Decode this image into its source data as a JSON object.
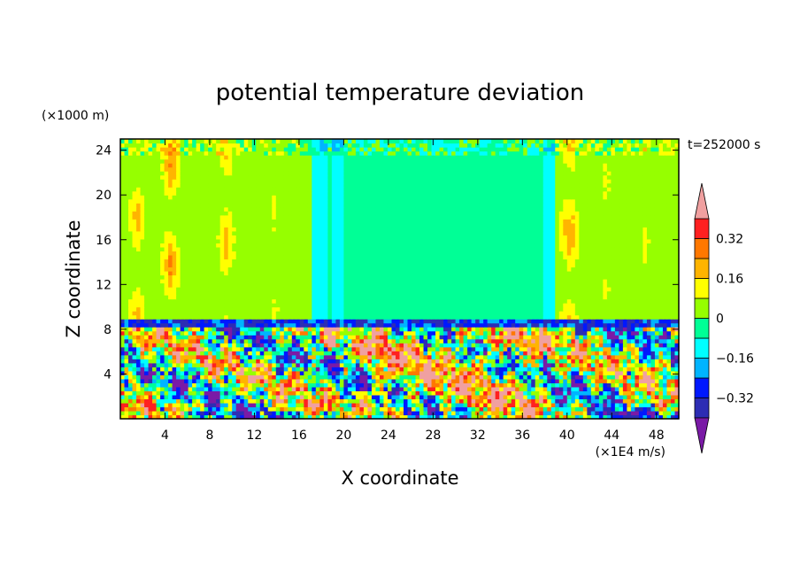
{
  "chart_data": {
    "type": "heatmap",
    "title": "potential temperature deviation",
    "xlabel": "X coordinate",
    "ylabel": "Z coordinate",
    "x_unit": "(×1E4 m/s)",
    "y_unit": "(×1000 m)",
    "time_label": "t=252000 s",
    "xlim": [
      0,
      50
    ],
    "ylim": [
      0,
      25
    ],
    "x_ticks": [
      4,
      8,
      12,
      16,
      20,
      24,
      28,
      32,
      36,
      40,
      44,
      48
    ],
    "y_ticks": [
      4,
      8,
      12,
      16,
      20,
      24
    ],
    "colorbar": {
      "levels": [
        -0.4,
        -0.32,
        -0.24,
        -0.16,
        -0.08,
        0,
        0.08,
        0.16,
        0.24,
        0.32,
        0.4
      ],
      "labels": [
        "0.32",
        "0.16",
        "0",
        "−0.16",
        "−0.32"
      ],
      "label_values": [
        0.32,
        0.16,
        0,
        -0.16,
        -0.32
      ],
      "colors": [
        "#7a1aa6",
        "#2d2db4",
        "#0018ff",
        "#00b4ff",
        "#00ffff",
        "#00ff96",
        "#96ff00",
        "#ffff00",
        "#ffb400",
        "#ff7800",
        "#ff2020",
        "#f0a0a0"
      ],
      "extend": "both"
    },
    "layers": {
      "upper_background_value": 0.04,
      "upper_region_value": -0.04,
      "inversion_height": 8.5,
      "inversion_value": -0.44,
      "plumes": [
        {
          "x": 1.5,
          "value": 0.2
        },
        {
          "x": 4.0,
          "value": 0.12
        },
        {
          "x": 4.5,
          "value": 0.25
        },
        {
          "x": 9.5,
          "value": 0.2
        },
        {
          "x": 13.8,
          "value": 0.1
        },
        {
          "x": 40.0,
          "value": 0.2
        },
        {
          "x": 40.3,
          "value": 0.24
        },
        {
          "x": 43.5,
          "value": 0.1
        },
        {
          "x": 47.0,
          "value": 0.1
        }
      ],
      "cool_columns": [
        {
          "x": 19.5,
          "value": -0.12
        },
        {
          "x": 38.5,
          "value": -0.12
        },
        {
          "x": 17.8,
          "value": -0.1
        }
      ]
    }
  }
}
